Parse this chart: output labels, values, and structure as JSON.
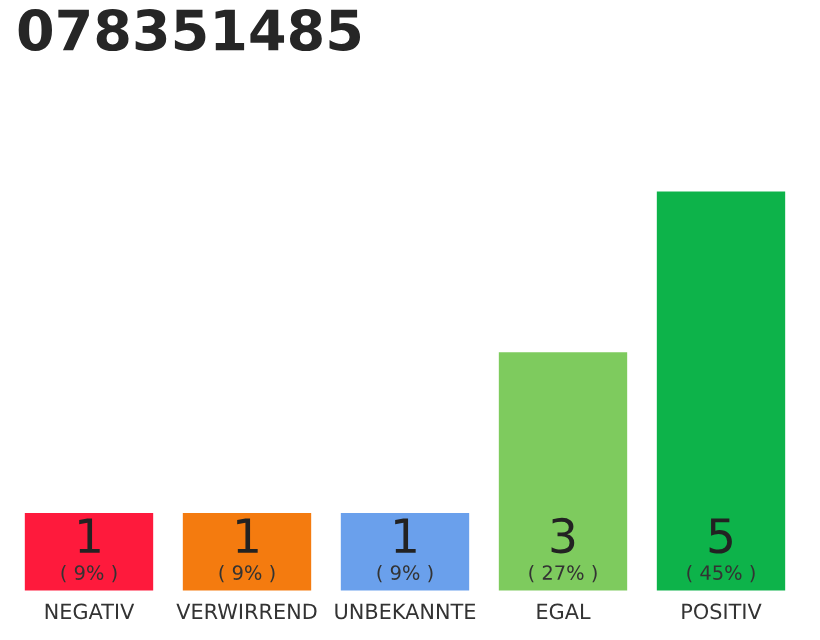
{
  "chart_data": {
    "type": "bar",
    "title": "078351485",
    "categories": [
      "NEGATIV",
      "VERWIRREND",
      "UNBEKANNTE",
      "EGAL",
      "POSITIV"
    ],
    "values": [
      1,
      1,
      1,
      3,
      5
    ],
    "colors": [
      "#fe1a3c",
      "#f47b0f",
      "#6aa0ec",
      "#7ecb5e",
      "#0db34a"
    ],
    "ylim": [
      0,
      5
    ],
    "data_labels": true,
    "grid": false,
    "legend": false,
    "annotations": [
      "( 9% )",
      "( 9% )",
      "( 9% )",
      "( 27% )",
      "( 45% )"
    ]
  }
}
